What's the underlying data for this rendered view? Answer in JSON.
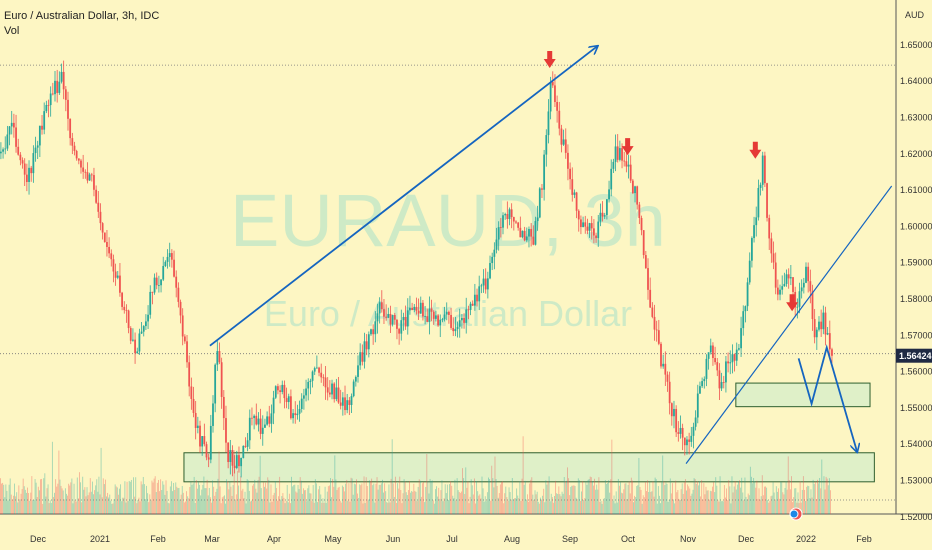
{
  "header": {
    "title": "Euro / Australian Dollar, 3h, IDC",
    "volume_label": "Vol"
  },
  "currency_label": "AUD",
  "watermark": {
    "symbol": "EURAUD, 3h",
    "name": "Euro / Australian Dollar"
  },
  "last_price": "1.56424",
  "colors": {
    "background": "#fdf6c3",
    "up_candle": "#26a69a",
    "down_candle": "#ef5350",
    "drawing_line": "#1565c0",
    "zone_fill": "#d9efc9",
    "zone_border": "#2e5e2e",
    "arrow_marker": "#e53935",
    "price_label_bg": "#1f2a44"
  },
  "chart_data": {
    "type": "candlestick",
    "x_tick_labels": [
      "Dec",
      "2021",
      "Feb",
      "Mar",
      "Apr",
      "May",
      "Jun",
      "Jul",
      "Aug",
      "Sep",
      "Oct",
      "Nov",
      "Dec",
      "2022",
      "Feb"
    ],
    "y_tick_labels": [
      "1.52000",
      "1.53000",
      "1.54000",
      "1.55000",
      "1.56000",
      "1.57000",
      "1.58000",
      "1.59000",
      "1.60000",
      "1.61000",
      "1.62000",
      "1.63000",
      "1.64000",
      "1.65000"
    ],
    "ylim": [
      1.5135,
      1.6545
    ],
    "price_path": [
      {
        "t": 0,
        "v": 1.62
      },
      {
        "t": 5,
        "v": 1.627
      },
      {
        "t": 12,
        "v": 1.612
      },
      {
        "t": 20,
        "v": 1.63
      },
      {
        "t": 28,
        "v": 1.642
      },
      {
        "t": 34,
        "v": 1.619
      },
      {
        "t": 42,
        "v": 1.612
      },
      {
        "t": 48,
        "v": 1.596
      },
      {
        "t": 56,
        "v": 1.58
      },
      {
        "t": 62,
        "v": 1.565
      },
      {
        "t": 70,
        "v": 1.582
      },
      {
        "t": 78,
        "v": 1.592
      },
      {
        "t": 84,
        "v": 1.571
      },
      {
        "t": 90,
        "v": 1.545
      },
      {
        "t": 96,
        "v": 1.535
      },
      {
        "t": 100,
        "v": 1.568
      },
      {
        "t": 104,
        "v": 1.538
      },
      {
        "t": 110,
        "v": 1.534
      },
      {
        "t": 116,
        "v": 1.548
      },
      {
        "t": 122,
        "v": 1.543
      },
      {
        "t": 128,
        "v": 1.557
      },
      {
        "t": 136,
        "v": 1.547
      },
      {
        "t": 144,
        "v": 1.56
      },
      {
        "t": 152,
        "v": 1.556
      },
      {
        "t": 160,
        "v": 1.55
      },
      {
        "t": 168,
        "v": 1.567
      },
      {
        "t": 176,
        "v": 1.578
      },
      {
        "t": 184,
        "v": 1.572
      },
      {
        "t": 192,
        "v": 1.577
      },
      {
        "t": 200,
        "v": 1.575
      },
      {
        "t": 206,
        "v": 1.575
      },
      {
        "t": 212,
        "v": 1.572
      },
      {
        "t": 218,
        "v": 1.58
      },
      {
        "t": 224,
        "v": 1.584
      },
      {
        "t": 230,
        "v": 1.6
      },
      {
        "t": 236,
        "v": 1.604
      },
      {
        "t": 240,
        "v": 1.598
      },
      {
        "t": 246,
        "v": 1.597
      },
      {
        "t": 250,
        "v": 1.612
      },
      {
        "t": 254,
        "v": 1.64
      },
      {
        "t": 258,
        "v": 1.627
      },
      {
        "t": 262,
        "v": 1.618
      },
      {
        "t": 266,
        "v": 1.604
      },
      {
        "t": 270,
        "v": 1.6
      },
      {
        "t": 274,
        "v": 1.597
      },
      {
        "t": 280,
        "v": 1.607
      },
      {
        "t": 284,
        "v": 1.621
      },
      {
        "t": 290,
        "v": 1.617
      },
      {
        "t": 294,
        "v": 1.606
      },
      {
        "t": 300,
        "v": 1.58
      },
      {
        "t": 306,
        "v": 1.56
      },
      {
        "t": 312,
        "v": 1.545
      },
      {
        "t": 318,
        "v": 1.538
      },
      {
        "t": 322,
        "v": 1.553
      },
      {
        "t": 328,
        "v": 1.567
      },
      {
        "t": 332,
        "v": 1.555
      },
      {
        "t": 336,
        "v": 1.563
      },
      {
        "t": 340,
        "v": 1.566
      },
      {
        "t": 344,
        "v": 1.577
      },
      {
        "t": 348,
        "v": 1.6
      },
      {
        "t": 352,
        "v": 1.618
      },
      {
        "t": 356,
        "v": 1.59
      },
      {
        "t": 360,
        "v": 1.58
      },
      {
        "t": 364,
        "v": 1.586
      },
      {
        "t": 368,
        "v": 1.578
      },
      {
        "t": 372,
        "v": 1.588
      },
      {
        "t": 376,
        "v": 1.571
      },
      {
        "t": 380,
        "v": 1.575
      },
      {
        "t": 384,
        "v": 1.564
      }
    ],
    "horizontal_levels": [
      1.6443,
      1.5648,
      1.5245
    ],
    "support_zones": [
      {
        "t0": 85,
        "t1": 404,
        "v_top": 1.5375,
        "v_bottom": 1.5295
      },
      {
        "t0": 340,
        "t1": 402,
        "v_top": 1.5567,
        "v_bottom": 1.5502
      }
    ],
    "annotations": {
      "rally_arrow": [
        {
          "t": 97,
          "v": 1.567
        },
        {
          "t": 276,
          "v": 1.6495
        }
      ],
      "trendline": [
        {
          "t": 317,
          "v": 1.5345
        },
        {
          "t": 412,
          "v": 1.611
        }
      ],
      "projection_path": [
        {
          "t": 369,
          "v": 1.5635
        },
        {
          "t": 375,
          "v": 1.551
        },
        {
          "t": 382,
          "v": 1.5665
        },
        {
          "t": 396,
          "v": 1.5378
        }
      ],
      "down_markers": [
        {
          "t": 254,
          "v": 1.6435
        },
        {
          "t": 290,
          "v": 1.6195
        },
        {
          "t": 349,
          "v": 1.6185
        },
        {
          "t": 366,
          "v": 1.5765
        }
      ]
    }
  }
}
